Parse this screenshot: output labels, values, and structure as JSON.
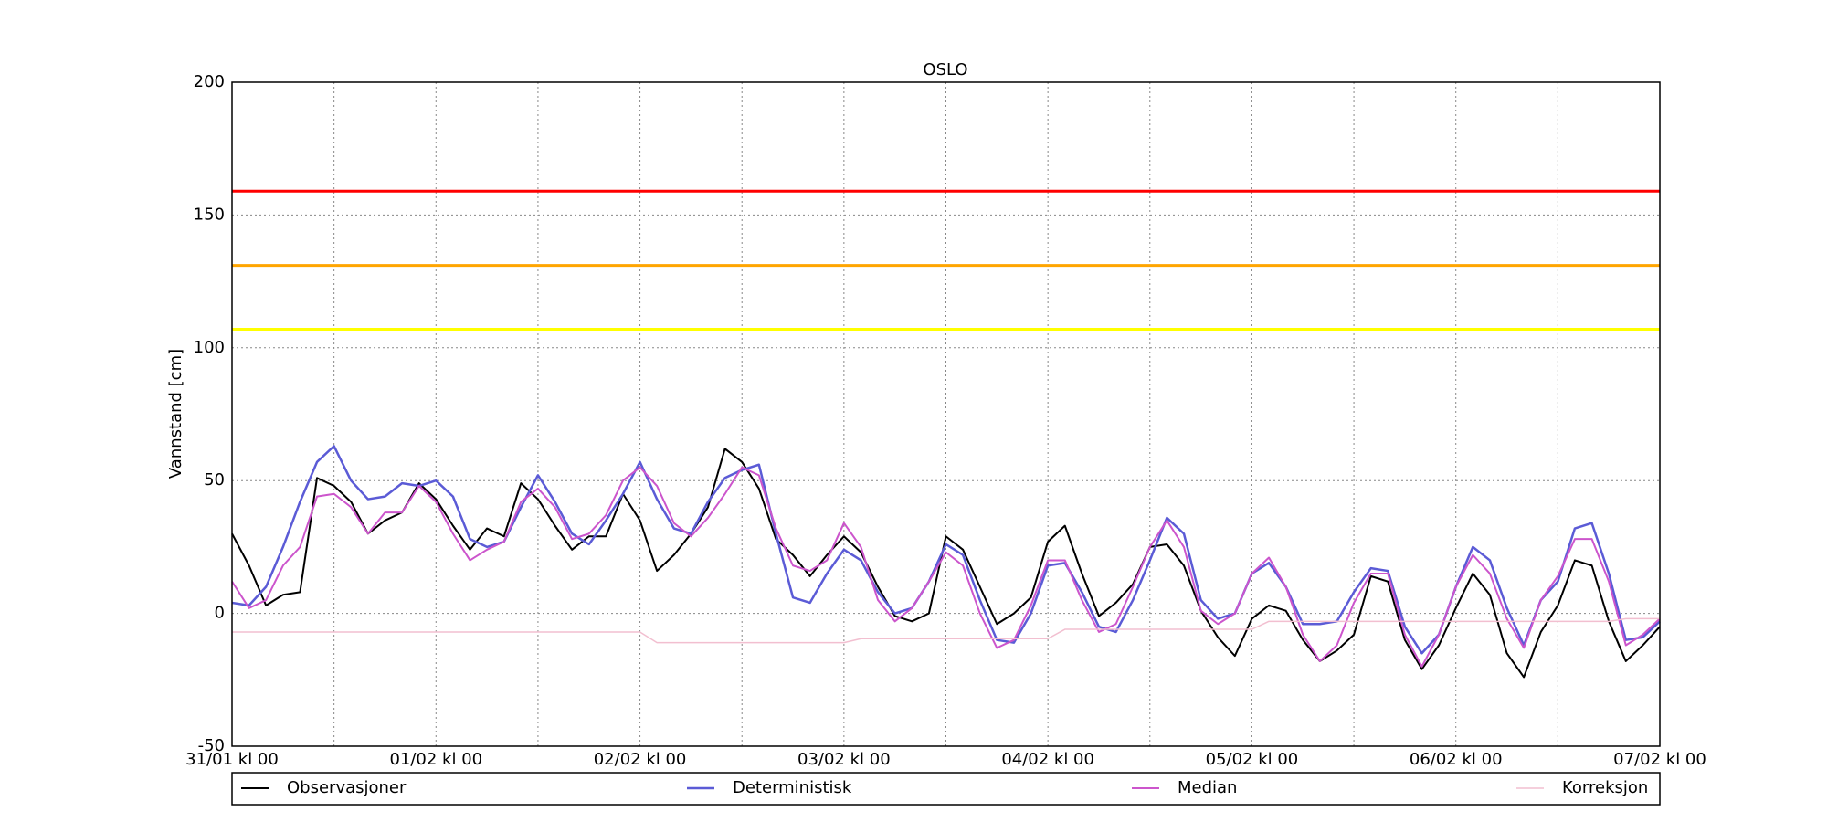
{
  "chart_data": {
    "type": "line",
    "title": "OSLO",
    "y_label": "Vannstand [cm]",
    "x": [
      0,
      2,
      4,
      6,
      8,
      10,
      12,
      14,
      16,
      18,
      20,
      22,
      24,
      26,
      28,
      30,
      32,
      34,
      36,
      38,
      40,
      42,
      44,
      46,
      48,
      50,
      52,
      54,
      56,
      58,
      60,
      62,
      64,
      66,
      68,
      70,
      72,
      74,
      76,
      78,
      80,
      82,
      84,
      86,
      88,
      90,
      92,
      94,
      96,
      98,
      100,
      102,
      104,
      106,
      108,
      110,
      112,
      114,
      116,
      118,
      120,
      122,
      124,
      126,
      128,
      130,
      132,
      134,
      136,
      138,
      140,
      142,
      144,
      146,
      148,
      150,
      152,
      154,
      156,
      158,
      160,
      162,
      164,
      166,
      168
    ],
    "series": [
      {
        "name": "Observasjoner",
        "color": "#000000",
        "width": 2,
        "values": [
          30,
          18,
          3,
          7,
          8,
          51,
          48,
          42,
          30,
          35,
          38,
          49,
          43,
          33,
          24,
          32,
          29,
          49,
          43,
          33,
          24,
          29,
          29,
          45,
          35,
          16,
          22,
          30,
          40,
          62,
          57,
          47,
          28,
          22,
          14,
          22,
          29,
          23,
          10,
          -1,
          -3,
          0,
          29,
          24,
          10,
          -4,
          0,
          6,
          27,
          33,
          15,
          -1,
          4,
          11,
          25,
          26,
          18,
          1,
          -9,
          -16,
          -2,
          3,
          1,
          -10,
          -18,
          -14,
          -8,
          14,
          12,
          -10,
          -21,
          -12,
          2,
          15,
          7,
          -15,
          -24,
          -7,
          3,
          20,
          18,
          -3,
          -18,
          -12,
          -5
        ]
      },
      {
        "name": "Deterministisk",
        "color": "#5b5bd6",
        "width": 2.5,
        "values": [
          4,
          3,
          10,
          25,
          42,
          57,
          63,
          50,
          43,
          44,
          49,
          48,
          50,
          44,
          28,
          25,
          27,
          40,
          52,
          42,
          30,
          26,
          35,
          45,
          57,
          43,
          32,
          30,
          42,
          51,
          54,
          56,
          30,
          6,
          4,
          15,
          24,
          20,
          8,
          0,
          2,
          12,
          26,
          22,
          5,
          -10,
          -11,
          0,
          18,
          19,
          8,
          -5,
          -7,
          5,
          20,
          36,
          30,
          5,
          -2,
          0,
          15,
          19,
          10,
          -4,
          -4,
          -3,
          8,
          17,
          16,
          -5,
          -15,
          -8,
          10,
          25,
          20,
          2,
          -12,
          5,
          12,
          32,
          34,
          15,
          -10,
          -9,
          -3
        ]
      },
      {
        "name": "Median",
        "color": "#cc55cc",
        "width": 2,
        "values": [
          12,
          2,
          5,
          18,
          25,
          44,
          45,
          40,
          30,
          38,
          38,
          48,
          42,
          30,
          20,
          24,
          27,
          42,
          47,
          40,
          28,
          30,
          37,
          50,
          55,
          48,
          34,
          29,
          36,
          45,
          55,
          52,
          32,
          18,
          16,
          20,
          34,
          25,
          5,
          -3,
          2,
          12,
          23,
          18,
          0,
          -13,
          -10,
          3,
          20,
          20,
          5,
          -7,
          -4,
          10,
          25,
          35,
          25,
          1,
          -4,
          0,
          15,
          21,
          10,
          -8,
          -18,
          -12,
          4,
          15,
          15,
          -8,
          -20,
          -8,
          10,
          22,
          15,
          -2,
          -13,
          5,
          14,
          28,
          28,
          12,
          -12,
          -8,
          -2
        ]
      },
      {
        "name": "Korreksjon",
        "color": "#f2bfd0",
        "width": 1.5,
        "values": [
          -7,
          -7,
          -7,
          -7,
          -7,
          -7,
          -7,
          -7,
          -7,
          -7,
          -7,
          -7,
          -7,
          -7,
          -7,
          -7,
          -7,
          -7,
          -7,
          -7,
          -7,
          -7,
          -7,
          -7,
          -7,
          -11,
          -11,
          -11,
          -11,
          -11,
          -11,
          -11,
          -11,
          -11,
          -11,
          -11,
          -11,
          -9.5,
          -9.5,
          -9.5,
          -9.5,
          -9.5,
          -9.5,
          -9.5,
          -9.5,
          -9.5,
          -9.5,
          -9.5,
          -9.5,
          -6,
          -6,
          -6,
          -6,
          -6,
          -6,
          -6,
          -6,
          -6,
          -6,
          -6,
          -6,
          -3,
          -3,
          -3,
          -3,
          -3,
          -3,
          -3,
          -3,
          -3,
          -3,
          -3,
          -3,
          -3,
          -3,
          -3,
          -3,
          -3,
          -3,
          -3,
          -3,
          -3,
          -2,
          -2,
          -2
        ]
      }
    ],
    "hlines": [
      {
        "value": 159,
        "color": "#ff0000"
      },
      {
        "value": 131,
        "color": "#ffa500"
      },
      {
        "value": 107,
        "color": "#ffff00"
      }
    ],
    "xlim": [
      0,
      168
    ],
    "ylim": [
      -50,
      200
    ],
    "xticks": [
      {
        "value": 0,
        "label": "31/01 kl 00"
      },
      {
        "value": 24,
        "label": "01/02 kl 00"
      },
      {
        "value": 48,
        "label": "02/02 kl 00"
      },
      {
        "value": 72,
        "label": "03/02 kl 00"
      },
      {
        "value": 96,
        "label": "04/02 kl 00"
      },
      {
        "value": 120,
        "label": "05/02 kl 00"
      },
      {
        "value": 144,
        "label": "06/02 kl 00"
      },
      {
        "value": 168,
        "label": "07/02 kl 00"
      }
    ],
    "xminorticks": [
      12,
      36,
      60,
      84,
      108,
      132,
      156
    ],
    "yticks": [
      -50,
      0,
      50,
      100,
      150,
      200
    ],
    "grid": true
  }
}
